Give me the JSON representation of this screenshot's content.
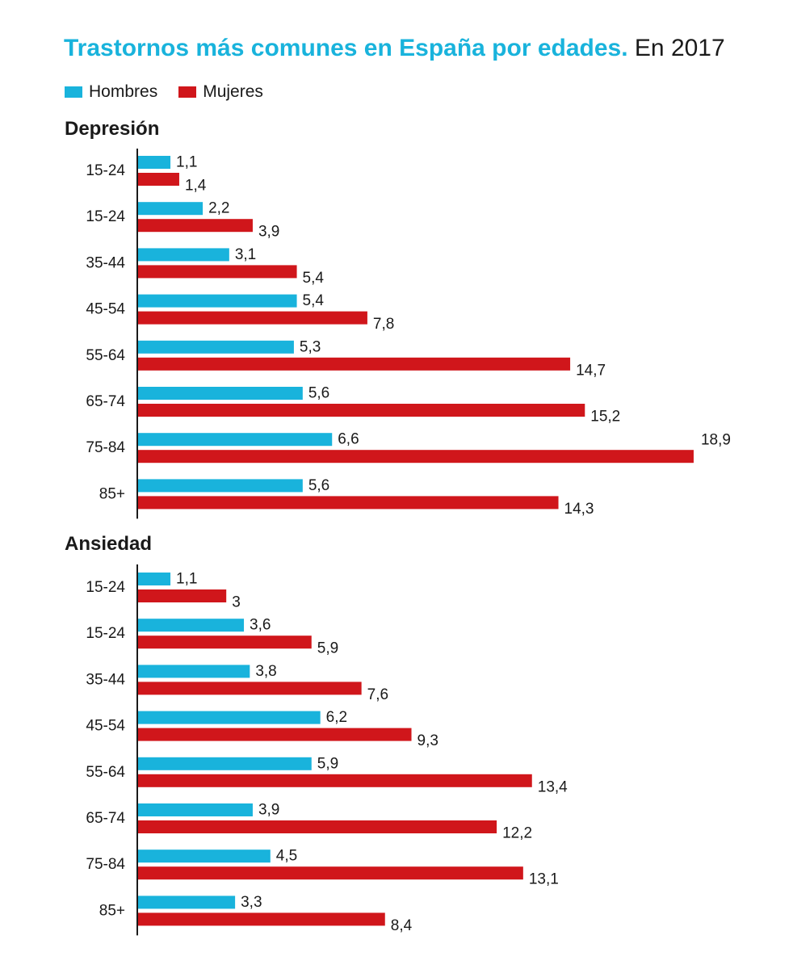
{
  "title": {
    "bold": "Trastornos  más comunes en España por edades.",
    "rest": " En 2017"
  },
  "legend": [
    {
      "label": "Hombres",
      "color": "#19b3dc"
    },
    {
      "label": "Mujeres",
      "color": "#d0161b"
    }
  ],
  "colors": {
    "hombres": "#19b3dc",
    "mujeres": "#d0161b",
    "axis": "#1a1a1a"
  },
  "chart_data": [
    {
      "type": "bar",
      "orientation": "horizontal",
      "title": "Depresión",
      "categories": [
        "15-24",
        "15-24",
        "35-44",
        "45-54",
        "55-64",
        "65-74",
        "75-84",
        "85+"
      ],
      "series": [
        {
          "name": "Hombres",
          "values": [
            1.1,
            2.2,
            3.1,
            5.4,
            5.3,
            5.6,
            6.6,
            5.6
          ],
          "labels": [
            "1,1",
            "2,2",
            "3,1",
            "5,4",
            "5,3",
            "5,6",
            "6,6",
            "5,6"
          ]
        },
        {
          "name": "Mujeres",
          "values": [
            1.4,
            3.9,
            5.4,
            7.8,
            14.7,
            15.2,
            18.9,
            14.3
          ],
          "labels": [
            "1,4",
            "3,9",
            "5,4",
            "7,8",
            "14,7",
            "15,2",
            "18,9",
            "14,3"
          ]
        }
      ],
      "xlim": [
        0,
        18.9
      ]
    },
    {
      "type": "bar",
      "orientation": "horizontal",
      "title": "Ansiedad",
      "categories": [
        "15-24",
        "15-24",
        "35-44",
        "45-54",
        "55-64",
        "65-74",
        "75-84",
        "85+"
      ],
      "series": [
        {
          "name": "Hombres",
          "values": [
            1.1,
            3.6,
            3.8,
            6.2,
            5.9,
            3.9,
            4.5,
            3.3
          ],
          "labels": [
            "1,1",
            "3,6",
            "3,8",
            "6,2",
            "5,9",
            "3,9",
            "4,5",
            "3,3"
          ]
        },
        {
          "name": "Mujeres",
          "values": [
            3,
            5.9,
            7.6,
            9.3,
            13.4,
            12.2,
            13.1,
            8.4
          ],
          "labels": [
            "3",
            "5,9",
            "7,6",
            "9,3",
            "13,4",
            "12,2",
            "13,1",
            "8,4"
          ]
        }
      ],
      "xlim": [
        0,
        18.9
      ]
    }
  ]
}
